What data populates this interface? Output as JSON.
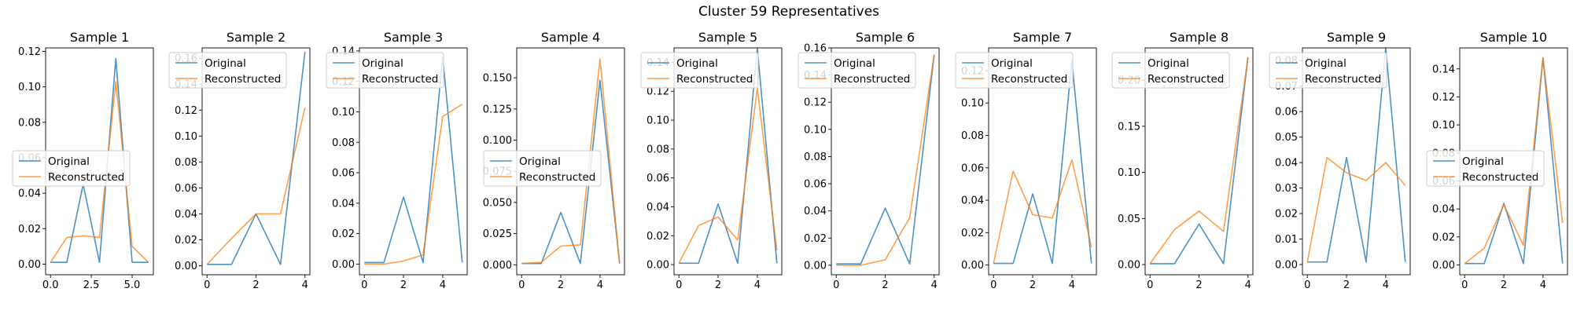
{
  "figure": {
    "title": "Cluster 59 Representatives"
  },
  "colors": {
    "original": "#1f77b4",
    "reconstructed": "#ff7f0e"
  },
  "chart_data": [
    {
      "type": "line",
      "title": "Sample 1",
      "x": [
        0,
        1,
        2,
        3,
        4,
        5,
        6
      ],
      "series": [
        {
          "name": "Original",
          "values": [
            0.001,
            0.001,
            0.045,
            0.001,
            0.116,
            0.001,
            0.001
          ]
        },
        {
          "name": "Reconstructed",
          "values": [
            0.001,
            0.015,
            0.016,
            0.015,
            0.103,
            0.01,
            0.001
          ]
        }
      ],
      "xlim": [
        -0.3,
        6.3
      ],
      "ylim": [
        -0.006,
        0.122
      ],
      "xticks": [
        0,
        2.5,
        5
      ],
      "xtick_labels": [
        "0.0",
        "2.5",
        "5.0"
      ],
      "yticks": [
        0,
        0.02,
        0.04,
        0.06,
        0.08,
        0.1,
        0.12
      ],
      "ytick_labels": [
        "0.00",
        "0.02",
        "0.04",
        "0.06",
        "0.08",
        "0.10",
        "0.12"
      ],
      "legend": "center-left"
    },
    {
      "type": "line",
      "title": "Sample 2",
      "x": [
        0,
        1,
        2,
        3,
        4
      ],
      "series": [
        {
          "name": "Original",
          "values": [
            0.001,
            0.001,
            0.04,
            0.001,
            0.165
          ]
        },
        {
          "name": "Reconstructed",
          "values": [
            0.001,
            0.021,
            0.04,
            0.04,
            0.122
          ]
        }
      ],
      "xlim": [
        -0.2,
        4.2
      ],
      "ylim": [
        -0.007,
        0.168
      ],
      "xticks": [
        0,
        2,
        4
      ],
      "xtick_labels": [
        "0",
        "2",
        "4"
      ],
      "yticks": [
        0,
        0.02,
        0.04,
        0.06,
        0.08,
        0.1,
        0.12,
        0.14,
        0.16
      ],
      "ytick_labels": [
        "0.00",
        "0.02",
        "0.04",
        "0.06",
        "0.08",
        "0.10",
        "0.12",
        "0.14",
        "0.16"
      ],
      "legend": "upper-left"
    },
    {
      "type": "line",
      "title": "Sample 3",
      "x": [
        0,
        1,
        2,
        3,
        4,
        5
      ],
      "series": [
        {
          "name": "Original",
          "values": [
            0.001,
            0.001,
            0.044,
            0.001,
            0.136,
            0.001
          ]
        },
        {
          "name": "Reconstructed",
          "values": [
            0.0,
            0.0,
            0.002,
            0.006,
            0.097,
            0.105
          ]
        }
      ],
      "xlim": [
        -0.25,
        5.25
      ],
      "ylim": [
        -0.007,
        0.142
      ],
      "xticks": [
        0,
        2,
        4
      ],
      "xtick_labels": [
        "0",
        "2",
        "4"
      ],
      "yticks": [
        0,
        0.02,
        0.04,
        0.06,
        0.08,
        0.1,
        0.12,
        0.14
      ],
      "ytick_labels": [
        "0.00",
        "0.02",
        "0.04",
        "0.06",
        "0.08",
        "0.10",
        "0.12",
        "0.14"
      ],
      "legend": "upper-left"
    },
    {
      "type": "line",
      "title": "Sample 4",
      "x": [
        0,
        1,
        2,
        3,
        4,
        5
      ],
      "series": [
        {
          "name": "Original",
          "values": [
            0.001,
            0.001,
            0.042,
            0.001,
            0.148,
            0.001
          ]
        },
        {
          "name": "Reconstructed",
          "values": [
            0.001,
            0.002,
            0.015,
            0.016,
            0.165,
            0.001
          ]
        }
      ],
      "xlim": [
        -0.25,
        5.25
      ],
      "ylim": [
        -0.008,
        0.174
      ],
      "xticks": [
        0,
        2,
        4
      ],
      "xtick_labels": [
        "0",
        "2",
        "4"
      ],
      "yticks": [
        0,
        0.025,
        0.05,
        0.075,
        0.1,
        0.125,
        0.15
      ],
      "ytick_labels": [
        "0.000",
        "0.025",
        "0.050",
        "0.075",
        "0.100",
        "0.125",
        "0.150"
      ],
      "legend": "center-left"
    },
    {
      "type": "line",
      "title": "Sample 5",
      "x": [
        0,
        1,
        2,
        3,
        4,
        5
      ],
      "series": [
        {
          "name": "Original",
          "values": [
            0.001,
            0.001,
            0.042,
            0.001,
            0.15,
            0.001
          ]
        },
        {
          "name": "Reconstructed",
          "values": [
            0.001,
            0.027,
            0.033,
            0.017,
            0.122,
            0.01
          ]
        }
      ],
      "xlim": [
        -0.25,
        5.25
      ],
      "ylim": [
        -0.007,
        0.15
      ],
      "xticks": [
        0,
        2,
        4
      ],
      "xtick_labels": [
        "0",
        "2",
        "4"
      ],
      "yticks": [
        0,
        0.02,
        0.04,
        0.06,
        0.08,
        0.1,
        0.12,
        0.14
      ],
      "ytick_labels": [
        "0.00",
        "0.02",
        "0.04",
        "0.06",
        "0.08",
        "0.10",
        "0.12",
        "0.14"
      ],
      "legend": "upper-left"
    },
    {
      "type": "line",
      "title": "Sample 6",
      "x": [
        0,
        1,
        2,
        3,
        4
      ],
      "series": [
        {
          "name": "Original",
          "values": [
            0.001,
            0.001,
            0.042,
            0.001,
            0.155
          ]
        },
        {
          "name": "Reconstructed",
          "values": [
            0.0,
            0.0,
            0.004,
            0.035,
            0.155
          ]
        }
      ],
      "xlim": [
        -0.2,
        4.2
      ],
      "ylim": [
        -0.007,
        0.16
      ],
      "xticks": [
        0,
        2,
        4
      ],
      "xtick_labels": [
        "0",
        "2",
        "4"
      ],
      "yticks": [
        0,
        0.02,
        0.04,
        0.06,
        0.08,
        0.1,
        0.12,
        0.14,
        0.16
      ],
      "ytick_labels": [
        "0.00",
        "0.02",
        "0.04",
        "0.06",
        "0.08",
        "0.10",
        "0.12",
        "0.14",
        "0.16"
      ],
      "legend": "upper-left"
    },
    {
      "type": "line",
      "title": "Sample 7",
      "x": [
        0,
        1,
        2,
        3,
        4,
        5
      ],
      "series": [
        {
          "name": "Original",
          "values": [
            0.001,
            0.001,
            0.044,
            0.001,
            0.126,
            0.001
          ]
        },
        {
          "name": "Reconstructed",
          "values": [
            0.001,
            0.058,
            0.031,
            0.029,
            0.065,
            0.011
          ]
        }
      ],
      "xlim": [
        -0.25,
        5.25
      ],
      "ylim": [
        -0.006,
        0.134
      ],
      "xticks": [
        0,
        2,
        4
      ],
      "xtick_labels": [
        "0",
        "2",
        "4"
      ],
      "yticks": [
        0,
        0.02,
        0.04,
        0.06,
        0.08,
        0.1,
        0.12
      ],
      "ytick_labels": [
        "0.00",
        "0.02",
        "0.04",
        "0.06",
        "0.08",
        "0.10",
        "0.12"
      ],
      "legend": "upper-left"
    },
    {
      "type": "line",
      "title": "Sample 8",
      "x": [
        0,
        1,
        2,
        3,
        4
      ],
      "series": [
        {
          "name": "Original",
          "values": [
            0.001,
            0.001,
            0.044,
            0.001,
            0.225
          ]
        },
        {
          "name": "Reconstructed",
          "values": [
            0.001,
            0.038,
            0.058,
            0.036,
            0.225
          ]
        }
      ],
      "xlim": [
        -0.2,
        4.2
      ],
      "ylim": [
        -0.011,
        0.235
      ],
      "xticks": [
        0,
        2,
        4
      ],
      "xtick_labels": [
        "0",
        "2",
        "4"
      ],
      "yticks": [
        0,
        0.05,
        0.1,
        0.15,
        0.2
      ],
      "ytick_labels": [
        "0.00",
        "0.05",
        "0.10",
        "0.15",
        "0.20"
      ],
      "legend": "upper-left"
    },
    {
      "type": "line",
      "title": "Sample 9",
      "x": [
        0,
        1,
        2,
        3,
        4,
        5
      ],
      "series": [
        {
          "name": "Original",
          "values": [
            0.001,
            0.001,
            0.042,
            0.001,
            0.085,
            0.001
          ]
        },
        {
          "name": "Reconstructed",
          "values": [
            0.001,
            0.042,
            0.036,
            0.033,
            0.04,
            0.031
          ]
        }
      ],
      "xlim": [
        -0.25,
        5.25
      ],
      "ylim": [
        -0.004,
        0.085
      ],
      "xticks": [
        0,
        2,
        4
      ],
      "xtick_labels": [
        "0",
        "2",
        "4"
      ],
      "yticks": [
        0,
        0.01,
        0.02,
        0.03,
        0.04,
        0.05,
        0.06,
        0.07,
        0.08
      ],
      "ytick_labels": [
        "0.00",
        "0.01",
        "0.02",
        "0.03",
        "0.04",
        "0.05",
        "0.06",
        "0.07",
        "0.08"
      ],
      "legend": "upper-left"
    },
    {
      "type": "line",
      "title": "Sample 10",
      "x": [
        0,
        1,
        2,
        3,
        4,
        5
      ],
      "series": [
        {
          "name": "Original",
          "values": [
            0.001,
            0.001,
            0.044,
            0.001,
            0.148,
            0.001
          ]
        },
        {
          "name": "Reconstructed",
          "values": [
            0.001,
            0.012,
            0.043,
            0.014,
            0.148,
            0.03
          ]
        }
      ],
      "xlim": [
        -0.25,
        5.25
      ],
      "ylim": [
        -0.007,
        0.155
      ],
      "xticks": [
        0,
        2,
        4
      ],
      "xtick_labels": [
        "0",
        "2",
        "4"
      ],
      "yticks": [
        0,
        0.02,
        0.04,
        0.06,
        0.08,
        0.1,
        0.12,
        0.14
      ],
      "ytick_labels": [
        "0.00",
        "0.02",
        "0.04",
        "0.06",
        "0.08",
        "0.10",
        "0.12",
        "0.14"
      ],
      "legend": "center-left"
    }
  ]
}
